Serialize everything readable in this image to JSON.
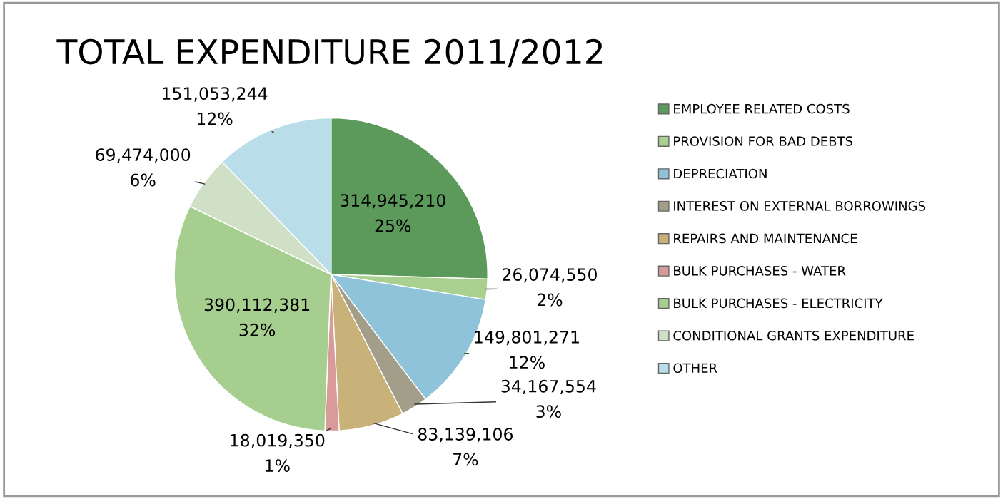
{
  "chart_data": {
    "type": "pie",
    "title": "TOTAL EXPENDITURE 2011/2012",
    "categories": [
      "EMPLOYEE RELATED COSTS",
      "PROVISION FOR BAD DEBTS",
      "DEPRECIATION",
      "INTEREST ON EXTERNAL BORROWINGS",
      "REPAIRS AND MAINTENANCE",
      "BULK PURCHASES - WATER",
      "BULK PURCHASES - ELECTRICITY",
      "CONDITIONAL GRANTS EXPENDITURE",
      "OTHER"
    ],
    "values": [
      314945210,
      26074550,
      149801271,
      34167554,
      83139106,
      18019350,
      390112381,
      69474000,
      151053244
    ],
    "colors": [
      "#5b9a5b",
      "#a9d08e",
      "#8fc3d9",
      "#a39e8a",
      "#c9b27a",
      "#d99a9a",
      "#a6cf8f",
      "#cfe0c6",
      "#b9dde9"
    ],
    "value_labels": [
      "314,945,210\n25%",
      "26,074,550\n2%",
      "149,801,271\n12%",
      "34,167,554\n3%",
      "83,139,106\n7%",
      "18,019,350\n1%",
      "390,112,381\n32%",
      "69,474,000\n6%",
      "151,053,244\n12%"
    ],
    "legend": "right"
  }
}
